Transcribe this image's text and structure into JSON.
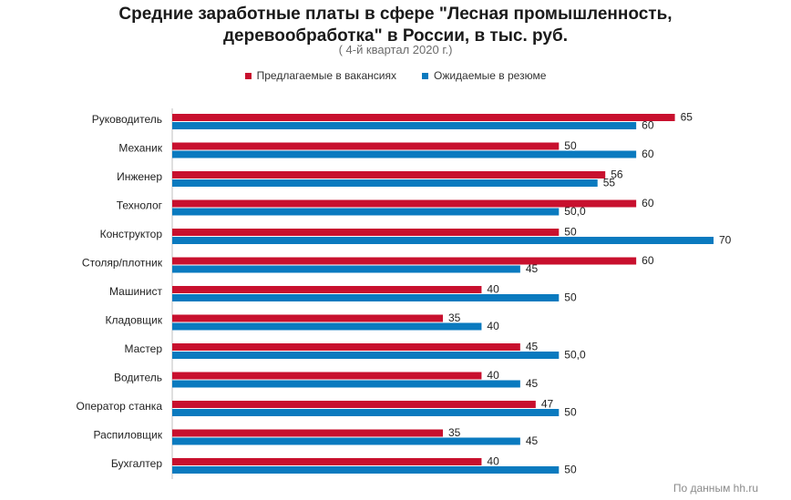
{
  "chart_data": {
    "type": "bar",
    "orientation": "horizontal",
    "title_line1": "Средние заработные платы в сфере \"Лесная промышленность,",
    "title_line2": "деревообработка\" в России, в тыс. руб.",
    "subtitle": "( 4-й квартал 2020 г.)",
    "legend_position": "top",
    "grid": false,
    "xlim": [
      0,
      70
    ],
    "categories": [
      "Руководитель",
      "Механик",
      "Инженер",
      "Технолог",
      "Конструктор",
      "Столяр/плотник",
      "Машинист",
      "Кладовщик",
      "Мастер",
      "Водитель",
      "Оператор станка",
      "Распиловщик",
      "Бухгалтер"
    ],
    "series": [
      {
        "name": "Предлагаемые в вакансиях",
        "color": "#c8102e",
        "values": [
          65,
          50,
          56,
          60,
          50,
          60,
          40,
          35,
          45,
          40,
          47,
          35,
          40
        ],
        "labels": [
          "65",
          "50",
          "56",
          "60",
          "50",
          "60",
          "40",
          "35",
          "45",
          "40",
          "47",
          "35",
          "40"
        ]
      },
      {
        "name": "Ожидаемые в резюме",
        "color": "#0a7abf",
        "values": [
          60,
          60,
          55,
          50,
          70,
          45,
          50,
          40,
          50,
          45,
          50,
          45,
          50
        ],
        "labels": [
          "60",
          "60",
          "55",
          "50,0",
          "70",
          "45",
          "50",
          "40",
          "50,0",
          "45",
          "50",
          "45",
          "50"
        ]
      }
    ]
  },
  "source": "По данным hh.ru"
}
